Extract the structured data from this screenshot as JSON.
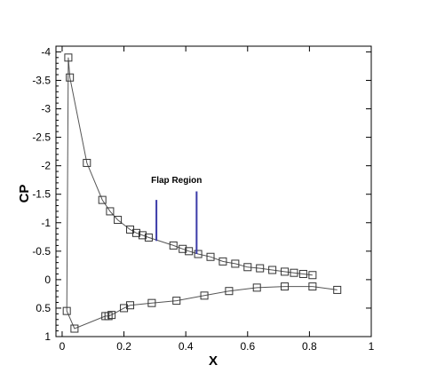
{
  "chart_data": {
    "type": "line",
    "title": "",
    "xlabel": "X",
    "ylabel": "CP",
    "xlim": [
      -0.02,
      1.0
    ],
    "ylim": [
      1.0,
      -4.1
    ],
    "y_reversed": true,
    "grid": false,
    "x_ticks": [
      {
        "value": 0,
        "label": "0"
      },
      {
        "value": 0.2,
        "label": "0.2"
      },
      {
        "value": 0.4,
        "label": "0.4"
      },
      {
        "value": 0.6,
        "label": "0.6"
      },
      {
        "value": 0.8,
        "label": "0.8"
      },
      {
        "value": 1.0,
        "label": "1"
      }
    ],
    "y_ticks": [
      {
        "value": -4,
        "label": "-4"
      },
      {
        "value": -3.5,
        "label": "-3.5"
      },
      {
        "value": -3,
        "label": "-3"
      },
      {
        "value": -2.5,
        "label": "-2.5"
      },
      {
        "value": -2,
        "label": "-2"
      },
      {
        "value": -1.5,
        "label": "-1.5"
      },
      {
        "value": -1,
        "label": "-1"
      },
      {
        "value": -0.5,
        "label": "-0.5"
      },
      {
        "value": 0,
        "label": "0"
      },
      {
        "value": 0.5,
        "label": "0.5"
      },
      {
        "value": 1,
        "label": "1"
      }
    ],
    "series": [
      {
        "line_color": "#555555",
        "marker": "square",
        "x": [
          0.89,
          0.81,
          0.72,
          0.63,
          0.54,
          0.46,
          0.37,
          0.29,
          0.22,
          0.2,
          0.16,
          0.15,
          0.14,
          0.04,
          0.015,
          0.02,
          0.025,
          0.08,
          0.13,
          0.155,
          0.18,
          0.22,
          0.24,
          0.26,
          0.28,
          0.36,
          0.39,
          0.41,
          0.44,
          0.48,
          0.52,
          0.56,
          0.6,
          0.64,
          0.68,
          0.72,
          0.75,
          0.78,
          0.81
        ],
        "y": [
          0.18,
          0.12,
          0.12,
          0.14,
          0.2,
          0.28,
          0.37,
          0.41,
          0.45,
          0.5,
          0.62,
          0.64,
          0.64,
          0.86,
          0.55,
          -3.9,
          -3.55,
          -2.05,
          -1.4,
          -1.2,
          -1.05,
          -0.88,
          -0.82,
          -0.78,
          -0.74,
          -0.6,
          -0.54,
          -0.5,
          -0.45,
          -0.4,
          -0.32,
          -0.28,
          -0.22,
          -0.2,
          -0.17,
          -0.14,
          -0.12,
          -0.1,
          -0.08
        ]
      }
    ],
    "annotations": [
      {
        "text": "Flap Region",
        "x": 0.37,
        "y": -1.7,
        "color": "#000000"
      },
      {
        "type": "vline",
        "x": 0.305,
        "y_from": -0.68,
        "y_to": -1.4,
        "color": "#3a3aa8"
      },
      {
        "type": "vline",
        "x": 0.435,
        "y_from": -0.45,
        "y_to": -1.55,
        "color": "#3a3aa8"
      }
    ]
  }
}
